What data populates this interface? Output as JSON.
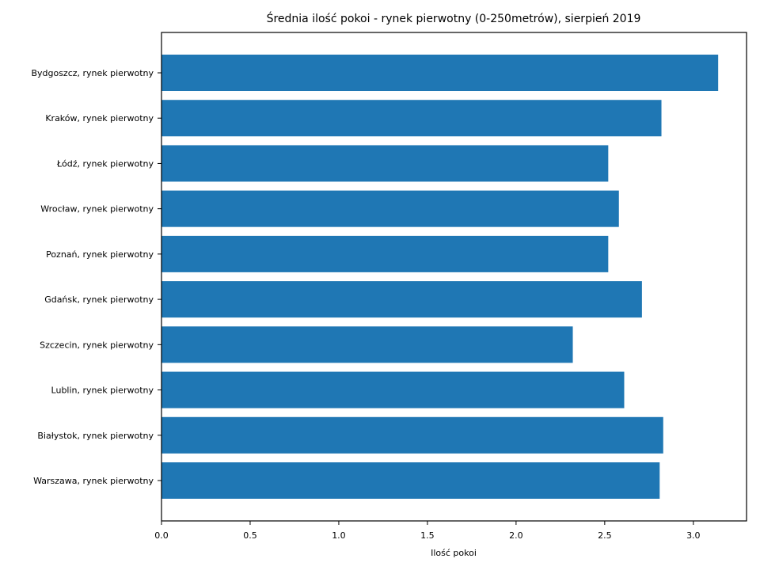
{
  "chart_data": {
    "type": "bar",
    "orientation": "horizontal",
    "title": "Średnia ilość pokoi - rynek pierwotny (0-250metrów), sierpień 2019",
    "xlabel": "Ilość pokoi",
    "ylabel": "",
    "categories": [
      "Bydgoszcz, rynek pierwotny",
      "Kraków, rynek pierwotny",
      "Łódź, rynek pierwotny",
      "Wrocław, rynek pierwotny",
      "Poznań, rynek pierwotny",
      "Gdańsk, rynek pierwotny",
      "Szczecin, rynek pierwotny",
      "Lublin, rynek pierwotny",
      "Białystok, rynek pierwotny",
      "Warszawa, rynek pierwotny"
    ],
    "values": [
      3.14,
      2.82,
      2.52,
      2.58,
      2.52,
      2.71,
      2.32,
      2.61,
      2.83,
      2.81
    ],
    "xlim": [
      0,
      3.3
    ],
    "xticks": [
      0.0,
      0.5,
      1.0,
      1.5,
      2.0,
      2.5,
      3.0
    ],
    "xtick_labels": [
      "0.0",
      "0.5",
      "1.0",
      "1.5",
      "2.0",
      "2.5",
      "3.0"
    ],
    "grid": false,
    "legend": "none",
    "bar_color": "#1f77b4"
  }
}
